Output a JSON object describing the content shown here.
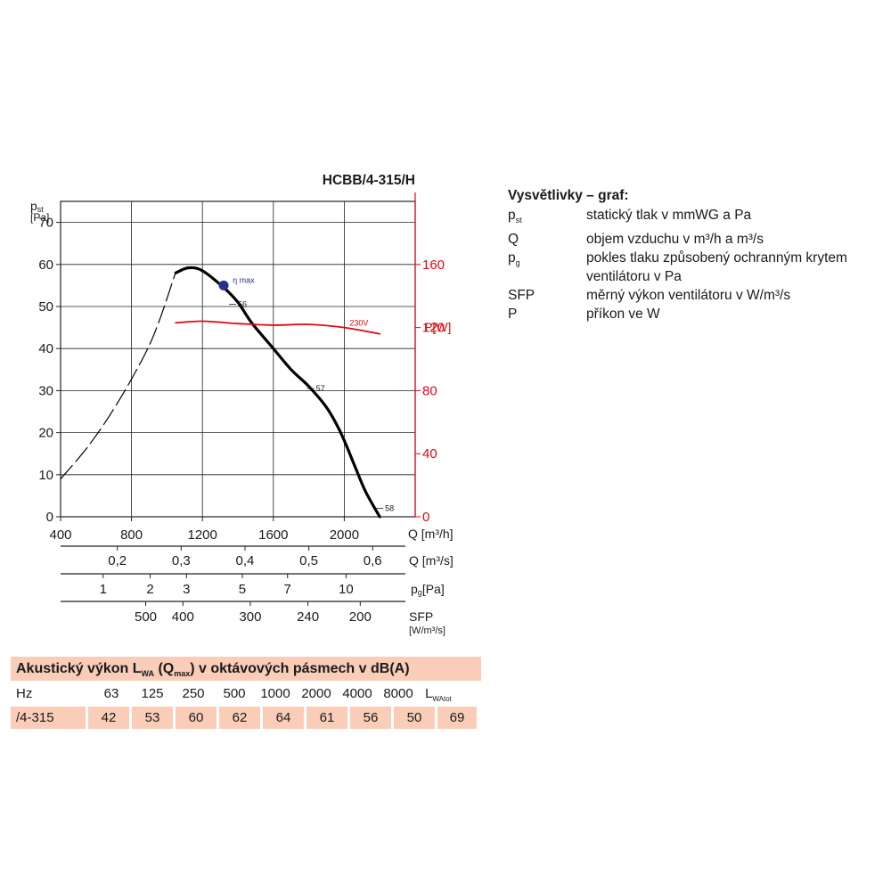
{
  "chart_data": {
    "type": "line",
    "title": "HCBB/4-315/H",
    "y_left": {
      "label_main": "p",
      "label_sub": "st",
      "label_unit": "[Pa]",
      "range": [
        0,
        75
      ],
      "ticks": [
        0,
        10,
        20,
        30,
        40,
        50,
        60,
        70
      ]
    },
    "y_right": {
      "label": "P[W]",
      "range": [
        0,
        200
      ],
      "ticks": [
        0,
        40,
        80,
        120,
        160
      ],
      "color": "#e30613"
    },
    "x": {
      "label": "Q [m³/h]",
      "range": [
        400,
        2400
      ],
      "ticks": [
        400,
        800,
        1200,
        1600,
        2000
      ]
    },
    "secondary_axes": [
      {
        "label": "Q [m³/s]",
        "ticks": [
          {
            "x": 720,
            "label": "0,2"
          },
          {
            "x": 1080,
            "label": "0,3"
          },
          {
            "x": 1440,
            "label": "0,4"
          },
          {
            "x": 1800,
            "label": "0,5"
          },
          {
            "x": 2160,
            "label": "0,6"
          }
        ]
      },
      {
        "label_main": "p",
        "label_sub": "g",
        "label_unit": "[Pa]",
        "ticks": [
          {
            "x": 640,
            "label": "1"
          },
          {
            "x": 905,
            "label": "2"
          },
          {
            "x": 1110,
            "label": "3"
          },
          {
            "x": 1425,
            "label": "5"
          },
          {
            "x": 1680,
            "label": "7"
          },
          {
            "x": 2010,
            "label": "10"
          }
        ]
      },
      {
        "label": "SFP",
        "label_unit": "[W/m³/s]",
        "ticks": [
          {
            "x": 880,
            "label": "500"
          },
          {
            "x": 1090,
            "label": "400"
          },
          {
            "x": 1470,
            "label": "300"
          },
          {
            "x": 1795,
            "label": "240"
          },
          {
            "x": 2090,
            "label": "200"
          }
        ]
      }
    ],
    "series": [
      {
        "name": "",
        "axis": "left",
        "style": "dashed",
        "color": "#000000",
        "points": [
          [
            400,
            9
          ],
          [
            560,
            17
          ],
          [
            720,
            27
          ],
          [
            880,
            39
          ],
          [
            960,
            47
          ],
          [
            1040,
            57
          ],
          [
            1050,
            58
          ]
        ]
      },
      {
        "name": "",
        "axis": "left",
        "style": "solid",
        "color": "#000000",
        "points": [
          [
            1050,
            58
          ],
          [
            1120,
            59.2
          ],
          [
            1200,
            58.5
          ],
          [
            1320,
            54.5
          ],
          [
            1400,
            51
          ],
          [
            1480,
            46
          ],
          [
            1600,
            40
          ],
          [
            1700,
            35
          ],
          [
            1800,
            31
          ],
          [
            1900,
            26
          ],
          [
            1980,
            20
          ],
          [
            2060,
            12
          ],
          [
            2120,
            6
          ],
          [
            2200,
            0
          ]
        ]
      },
      {
        "name": "230V",
        "axis": "right",
        "style": "solid",
        "color": "#e30613",
        "points": [
          [
            1050,
            123
          ],
          [
            1200,
            124
          ],
          [
            1400,
            122.5
          ],
          [
            1600,
            121.5
          ],
          [
            1800,
            122
          ],
          [
            2000,
            120
          ],
          [
            2200,
            116
          ]
        ]
      }
    ],
    "annotations": [
      {
        "text": "η max",
        "x": 1320,
        "y": 55,
        "marker": "dot",
        "marker_color": "#2b2f8f"
      },
      {
        "text": "56",
        "x": 1390,
        "y": 50.5
      },
      {
        "text": "57",
        "x": 1830,
        "y": 30.5
      },
      {
        "text": "58",
        "x": 2220,
        "y": 2
      }
    ],
    "grid": true
  },
  "legend": {
    "title": "Vysvětlivky – graf:",
    "items": [
      {
        "symbol": "p",
        "sub": "st",
        "desc": "statický tlak v mmWG a Pa"
      },
      {
        "symbol": "Q",
        "sub": "",
        "desc": "objem vzduchu v m³/h a m³/s"
      },
      {
        "symbol": "p",
        "sub": "g",
        "desc": "pokles tlaku způsobený ochranným krytem ventilátoru v Pa"
      },
      {
        "symbol": "SFP",
        "sub": "",
        "desc": "měrný výkon ventilátoru v W/m³/s"
      },
      {
        "symbol": "P",
        "sub": "",
        "desc": "příkon ve W"
      }
    ]
  },
  "acoustic": {
    "title_pre": "Akustický výkon L",
    "title_sub1": "WA",
    "title_mid": " (Q",
    "title_sub2": "max",
    "title_post": ") v oktávových pásmech v dB(A)",
    "header_label": "Hz",
    "bands": [
      "63",
      "125",
      "250",
      "500",
      "1000",
      "2000",
      "4000",
      "8000"
    ],
    "total_label": "L",
    "total_sub": "WAtot",
    "row_label": "/4-315",
    "values": [
      "42",
      "53",
      "60",
      "62",
      "64",
      "61",
      "56",
      "50"
    ],
    "total_value": "69"
  }
}
